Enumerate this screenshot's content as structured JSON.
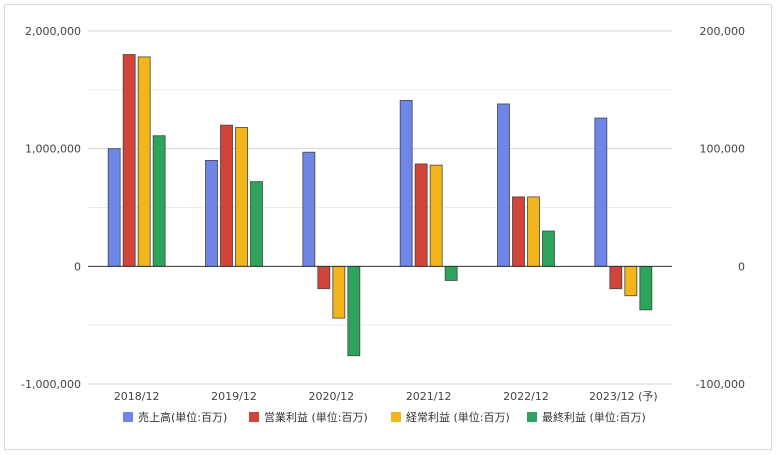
{
  "chart_data": {
    "type": "bar",
    "categories": [
      "2018/12",
      "2019/12",
      "2020/12",
      "2021/12",
      "2022/12",
      "2023/12 (予)"
    ],
    "series": [
      {
        "name": "売上高(単位:百万)",
        "axis": "left",
        "color": "#6f86e8",
        "values": [
          1000000,
          900000,
          970000,
          1410000,
          1380000,
          1260000
        ]
      },
      {
        "name": "営業利益 (単位:百万)",
        "axis": "right",
        "color": "#d2443a",
        "values": [
          180000,
          120000,
          -19000,
          87000,
          59000,
          -19000
        ]
      },
      {
        "name": "経常利益 (単位:百万)",
        "axis": "right",
        "color": "#f2b61c",
        "values": [
          178000,
          118000,
          -44000,
          86000,
          59000,
          -25000
        ]
      },
      {
        "name": "最終利益 (単位:百万)",
        "axis": "right",
        "color": "#2ea35c",
        "values": [
          111000,
          72000,
          -76000,
          -12000,
          30000,
          -37000
        ]
      }
    ],
    "left_axis": {
      "ylim": [
        -1000000,
        2000000
      ],
      "ticks": [
        -1000000,
        0,
        1000000,
        2000000
      ],
      "tick_labels": [
        "-1,000,000",
        "0",
        "1,000,000",
        "2,000,000"
      ]
    },
    "right_axis": {
      "ylim": [
        -100000,
        200000
      ],
      "ticks": [
        -100000,
        0,
        100000,
        200000
      ],
      "tick_labels": [
        "-100,000",
        "0",
        "100,000",
        "200,000"
      ]
    },
    "grid": true,
    "legend_position": "bottom"
  }
}
